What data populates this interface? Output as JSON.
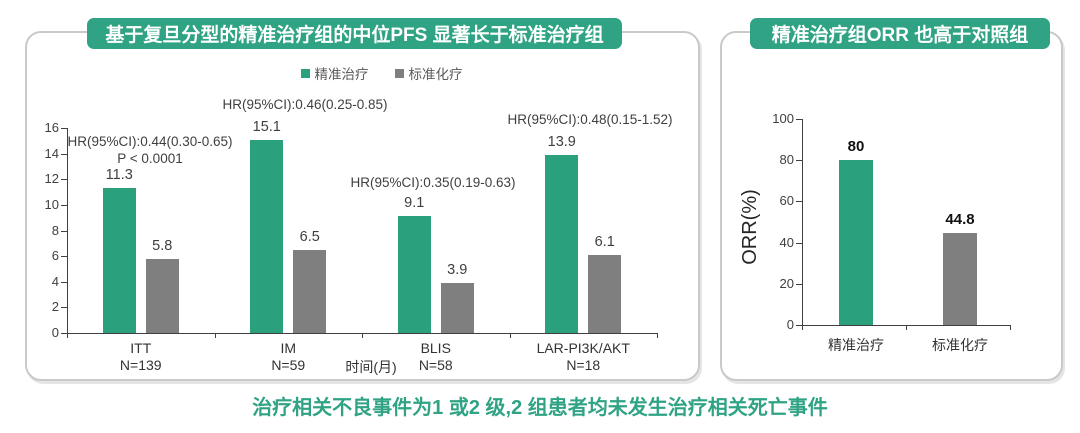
{
  "left_panel": {
    "title": "基于复旦分型的精准治疗组的中位PFS 显著长于标准治疗组",
    "legend": [
      {
        "label": "精准治疗",
        "color": "#2aa17c"
      },
      {
        "label": "标准化疗",
        "color": "#7f7f7f"
      }
    ]
  },
  "right_panel": {
    "title": "精准治疗组ORR 也高于对照组"
  },
  "footnote": "治疗相关不良事件为1 或2 级,2 组患者均未发生治疗相关死亡事件",
  "colors": {
    "accent_green": "#2aa17c",
    "header_green": "#2fa384",
    "bar_gray": "#7f7f7f",
    "panel_border": "#c9c9c9",
    "axis": "#404040"
  },
  "chart_data": [
    {
      "type": "bar",
      "title": "",
      "categories": [
        "ITT\nN=139",
        "IM\nN=59",
        "BLIS\nN=58",
        "LAR-PI3K/AKT\nN=18"
      ],
      "series": [
        {
          "name": "精准治疗",
          "color": "#2aa17c",
          "values": [
            11.3,
            15.1,
            9.1,
            13.9
          ]
        },
        {
          "name": "标准化疗",
          "color": "#7f7f7f",
          "values": [
            5.8,
            6.5,
            3.9,
            6.1
          ]
        }
      ],
      "annotations": [
        {
          "lines": [
            "HR(95%CI):0.44(0.30-0.65)",
            "P < 0.0001"
          ]
        },
        {
          "lines": [
            "HR(95%CI):0.46(0.25-0.85)"
          ]
        },
        {
          "lines": [
            "HR(95%CI):0.35(0.19-0.63)"
          ]
        },
        {
          "lines": [
            "HR(95%CI):0.48(0.15-1.52)"
          ]
        }
      ],
      "xlabel": "时间(月)",
      "ylabel": "",
      "ylim": [
        0,
        16
      ],
      "ytick_step": 2,
      "grid": false,
      "legend_position": "top-center"
    },
    {
      "type": "bar",
      "title": "",
      "categories": [
        "精准治疗",
        "标准化疗"
      ],
      "values": [
        80,
        44.8
      ],
      "colors": [
        "#2aa17c",
        "#7f7f7f"
      ],
      "xlabel": "",
      "ylabel": "ORR(%)",
      "ylim": [
        0,
        100
      ],
      "ytick_step": 20,
      "grid": false
    }
  ]
}
